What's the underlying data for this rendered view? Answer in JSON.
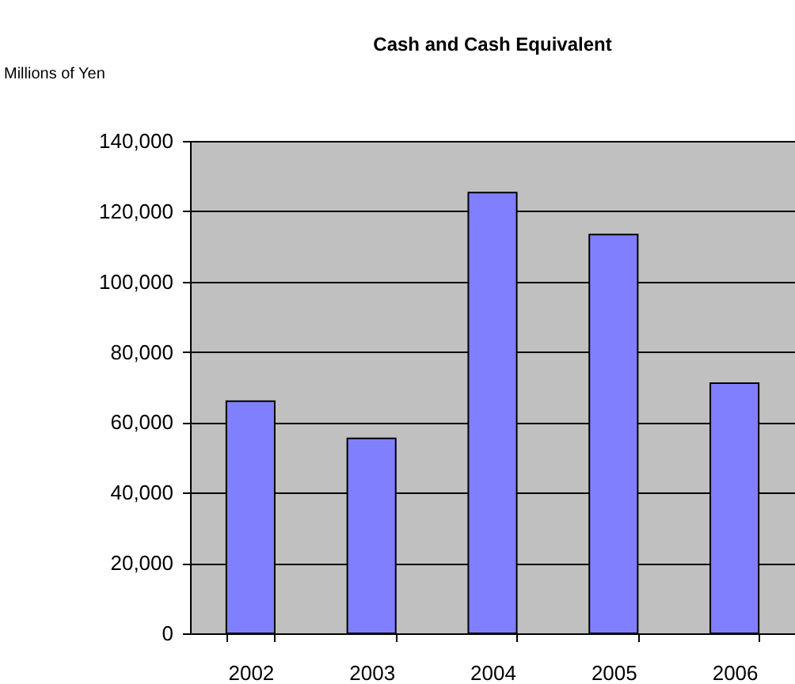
{
  "chart_data": {
    "type": "bar",
    "title": "Cash and Cash Equivalent",
    "ylabel": "Millions of Yen",
    "categories": [
      "2002",
      "2003",
      "2004",
      "2005",
      "2006"
    ],
    "values": [
      66000,
      55400,
      125300,
      113400,
      71100
    ],
    "color": "#8080ff",
    "ylim": [
      0,
      140000
    ],
    "yticks": [
      0,
      {
        "value": 20000,
        "label": "20,000"
      },
      {
        "value": 40000,
        "label": "40,000"
      },
      {
        "value": 60000,
        "label": "60,000"
      },
      {
        "value": 80000,
        "label": "80,000"
      },
      {
        "value": 100000,
        "label": "100,000"
      },
      {
        "value": 120000,
        "label": "120,000"
      },
      {
        "value": 140000,
        "label": "140,000"
      }
    ],
    "grid": "y"
  }
}
